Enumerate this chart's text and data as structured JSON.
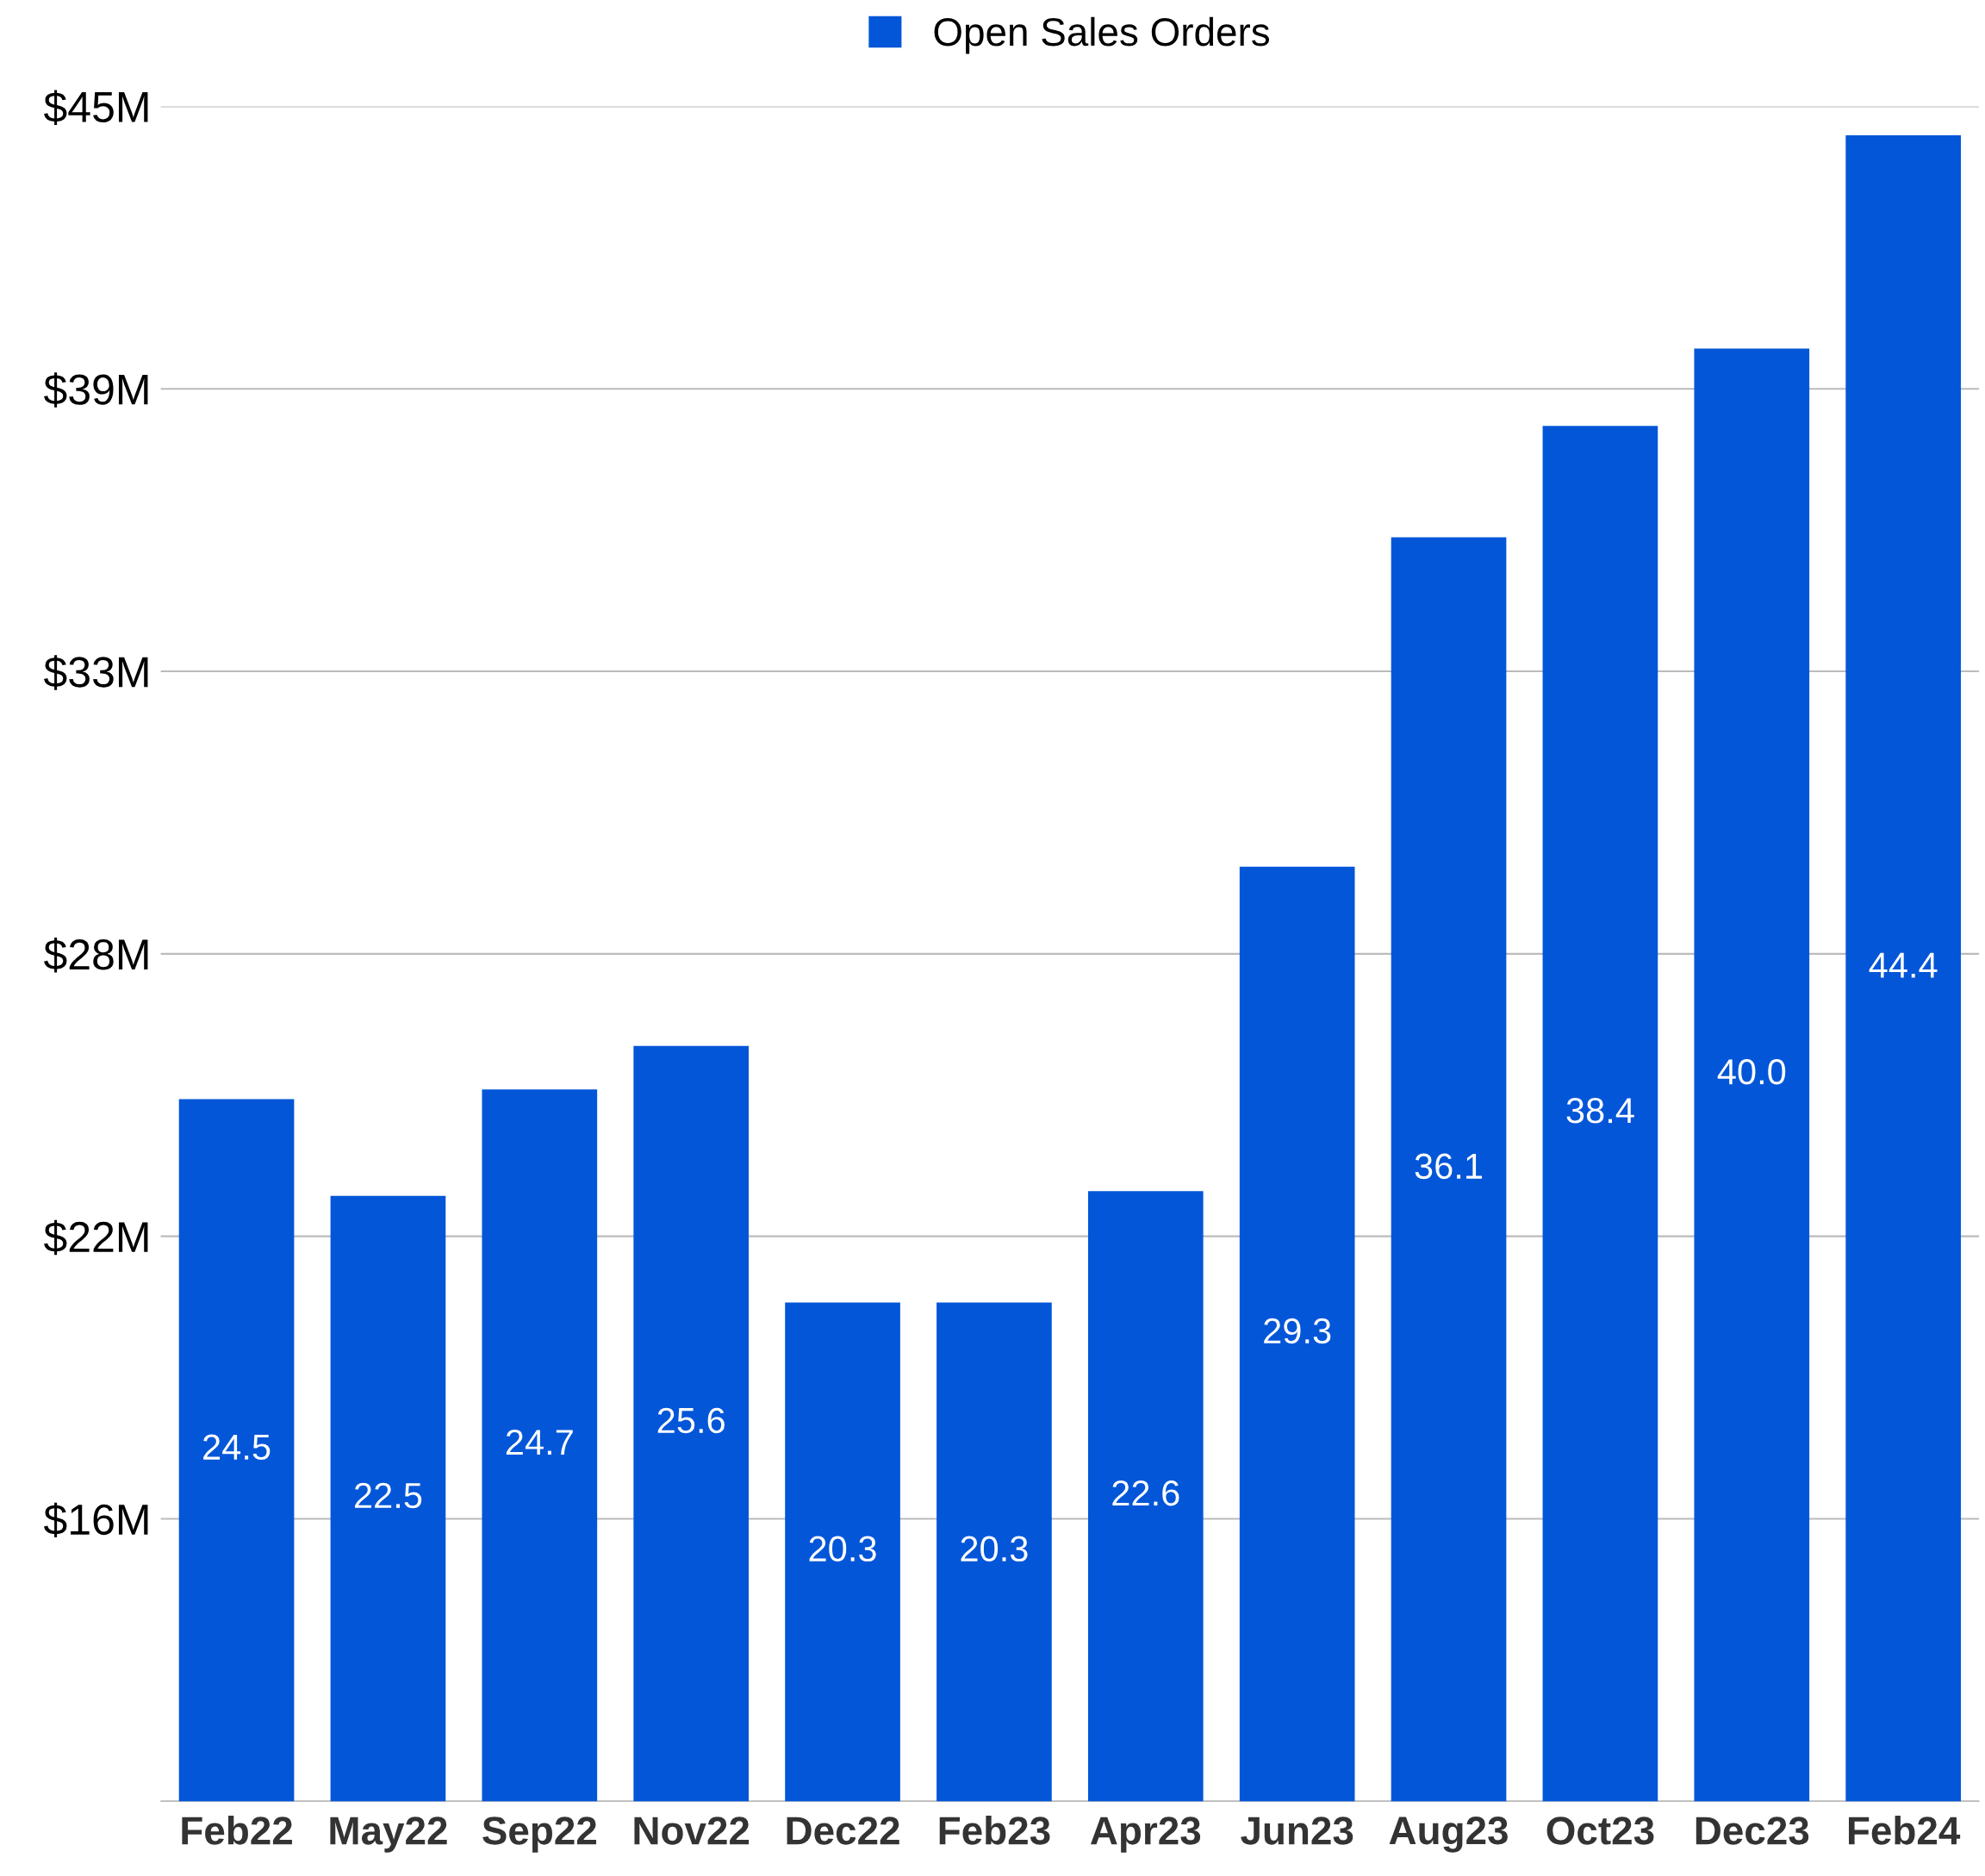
{
  "chart_data": {
    "type": "bar",
    "categories": [
      "Feb22",
      "May22",
      "Sep22",
      "Nov22",
      "Dec22",
      "Feb23",
      "Apr23",
      "Jun23",
      "Aug23",
      "Oct23",
      "Dec23",
      "Feb24"
    ],
    "series": [
      {
        "name": "Open Sales Orders",
        "color": "#0356d8",
        "values": [
          24.5,
          22.5,
          24.7,
          25.6,
          20.3,
          20.3,
          22.6,
          29.3,
          36.1,
          38.4,
          40.0,
          44.4
        ],
        "value_labels": [
          "24.5",
          "22.5",
          "24.7",
          "25.6",
          "20.3",
          "20.3",
          "22.6",
          "29.3",
          "36.1",
          "38.4",
          "40.0",
          "44.4"
        ]
      }
    ],
    "ylim": [
      10,
      45
    ],
    "yticks": [
      {
        "value": 10,
        "label": null
      },
      {
        "value": 15.833,
        "label": "$16M"
      },
      {
        "value": 21.667,
        "label": "$22M"
      },
      {
        "value": 27.5,
        "label": "$28M"
      },
      {
        "value": 33.333,
        "label": "$33M"
      },
      {
        "value": 39.167,
        "label": "$39M"
      },
      {
        "value": 45,
        "label": "$45M"
      }
    ],
    "grid": "y",
    "legend": "top"
  }
}
